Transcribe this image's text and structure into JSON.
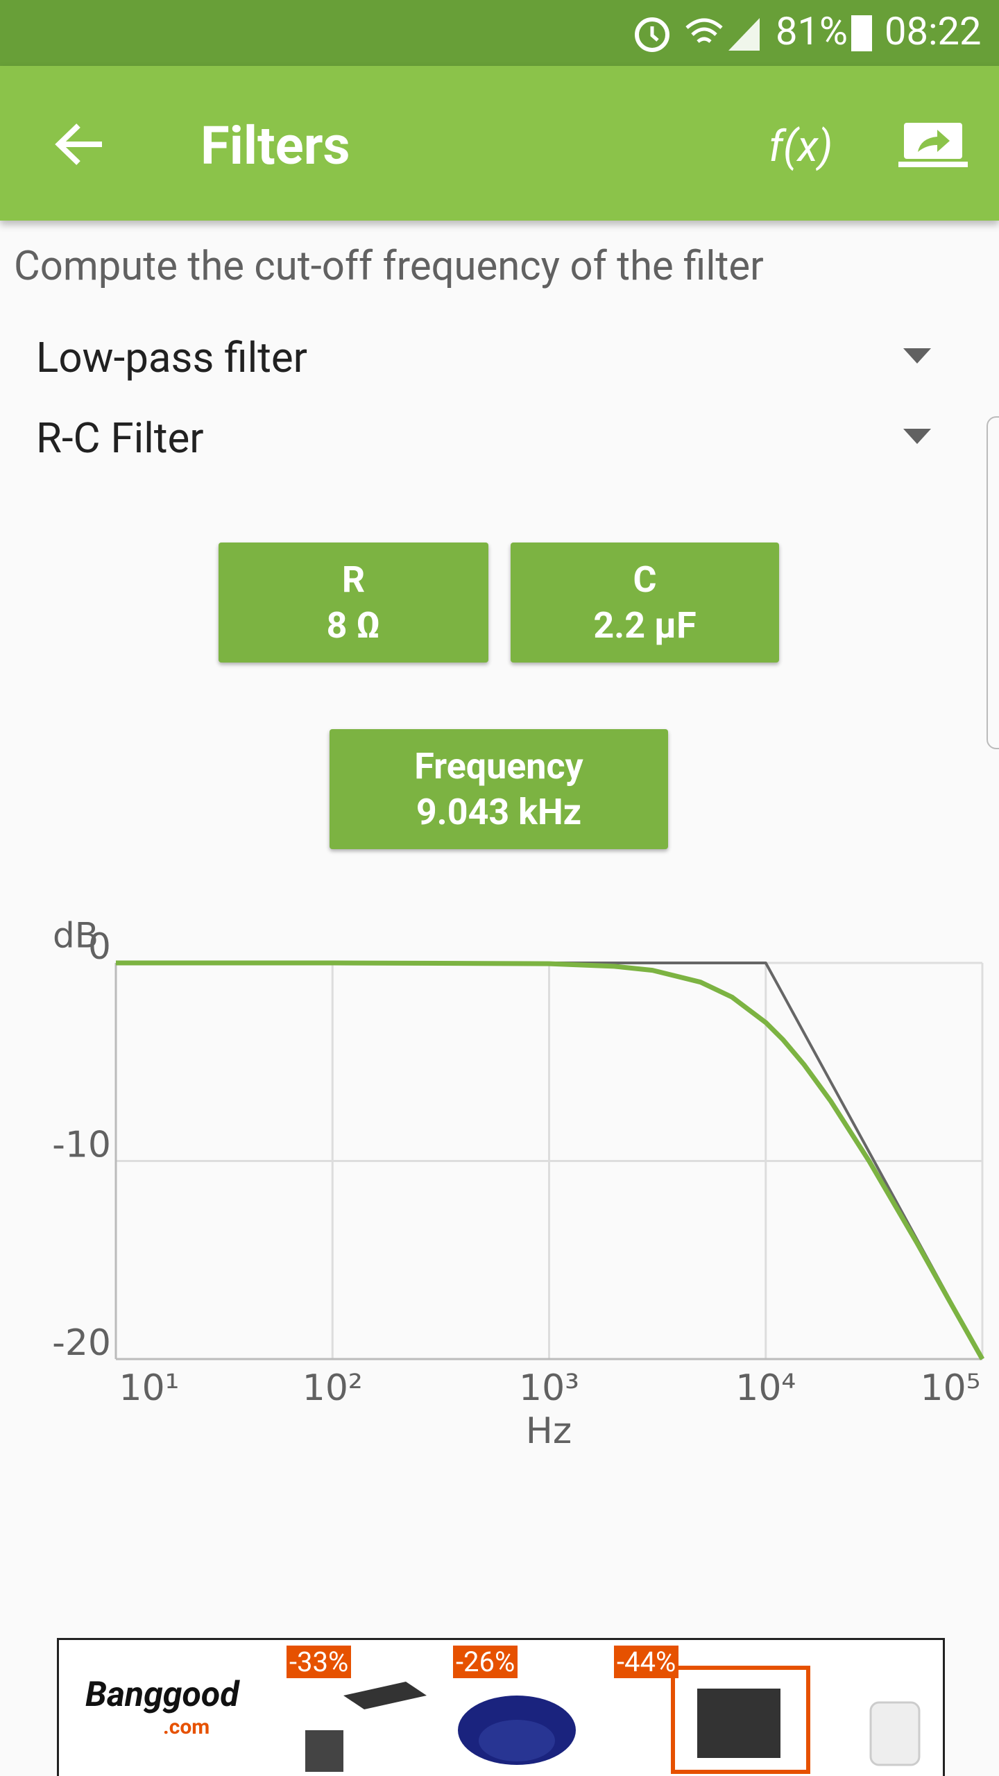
{
  "status_bar": {
    "battery": "81%",
    "time": "08:22"
  },
  "app_bar": {
    "title": "Filters",
    "formula_button": "f(x)"
  },
  "instruction": "Compute the cut-off frequency of the filter",
  "selectors": [
    "Low-pass filter",
    "R-C Filter"
  ],
  "inputs": [
    {
      "label": "R",
      "value": "8 Ω"
    },
    {
      "label": "C",
      "value": "2.2 µF"
    }
  ],
  "result": {
    "label": "Frequency",
    "value": "9.043 kHz"
  },
  "chart_data": {
    "type": "line",
    "x_label": "Hz",
    "y_label": "dB",
    "log_x": true,
    "grid": true,
    "x": [
      10,
      100,
      1000,
      2000,
      3000,
      5000,
      7000,
      10000,
      12000,
      15000,
      20000,
      30000,
      50000,
      70000,
      100000
    ],
    "series": [
      {
        "color": "#666666",
        "values": [
          0,
          0,
          0,
          0,
          0,
          0,
          0,
          0,
          -1.58,
          -3.52,
          -6.02,
          -9.54,
          -13.98,
          -16.9,
          -20
        ]
      },
      {
        "color": "#7cb342",
        "values": [
          0,
          0,
          -0.04,
          -0.17,
          -0.37,
          -0.97,
          -1.73,
          -3.01,
          -3.87,
          -5.12,
          -6.99,
          -10,
          -14.15,
          -17,
          -20
        ]
      }
    ],
    "xlim": [
      10,
      100000
    ],
    "xticks": [
      {
        "value": 10,
        "label": "10¹"
      },
      {
        "value": 100,
        "label": "10²"
      },
      {
        "value": 1000,
        "label": "10³"
      },
      {
        "value": 10000,
        "label": "10⁴"
      },
      {
        "value": 100000,
        "label": "10⁵"
      }
    ],
    "ylim": [
      -20,
      0
    ],
    "yticks": [
      0,
      -10,
      -20
    ]
  },
  "ad": {
    "brand": "Banggood",
    "domain": ".com",
    "discounts": [
      "-33%",
      "-26%",
      "-44%"
    ]
  }
}
